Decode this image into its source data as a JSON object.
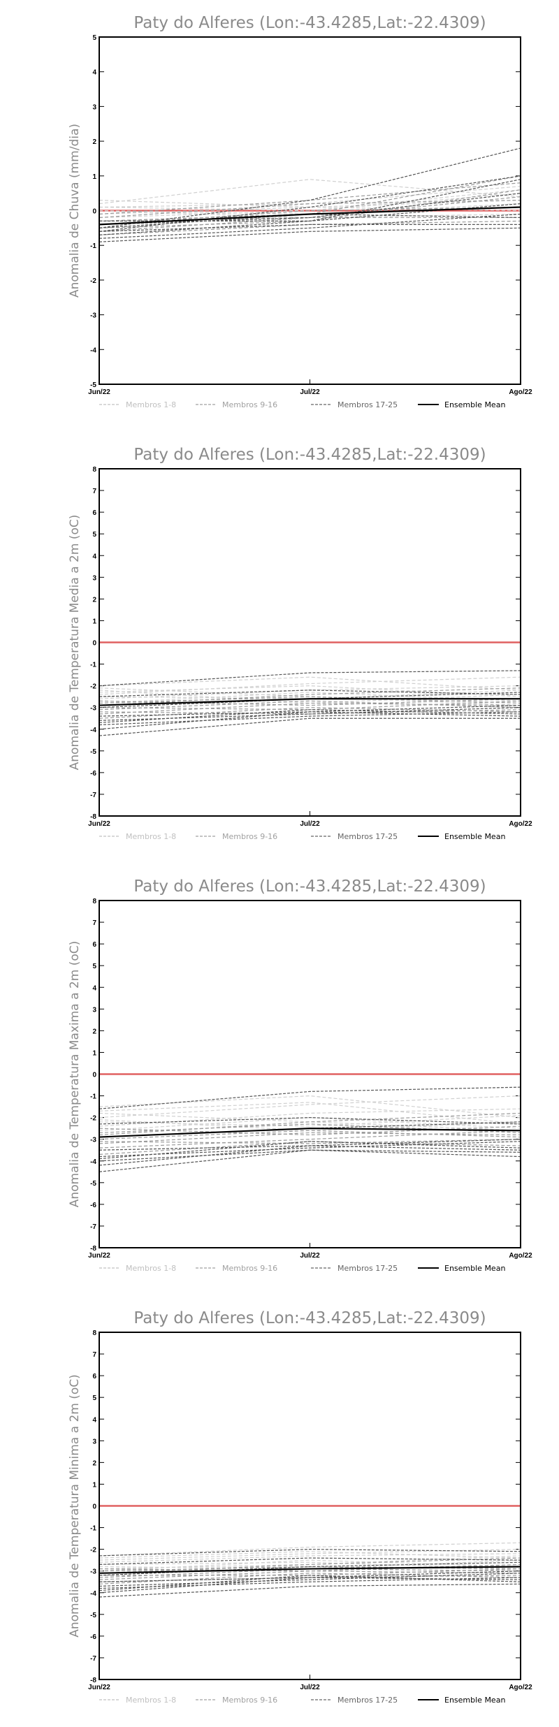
{
  "chart_data": [
    {
      "type": "line",
      "title": "Paty do Alferes (Lon:-43.4285,Lat:-22.4309)",
      "ylabel": "Anomalia de Chuva (mm/dia)",
      "xlabel": "",
      "categories": [
        "Jun/22",
        "Jul/22",
        "Ago/22"
      ],
      "ylim": [
        -5,
        5
      ],
      "yticks": [
        -5,
        -4,
        -3,
        -2,
        -1,
        0,
        1,
        2,
        3,
        4,
        5
      ],
      "grid": false,
      "legend_position": "bottom",
      "legend": [
        "Membros 1-8",
        "Membros 9-16",
        "Membros 17-25",
        "Ensemble Mean"
      ],
      "zero_line_color": "#e06060",
      "series": [
        {
          "group": 1,
          "values": [
            0.2,
            0.9,
            0.4
          ]
        },
        {
          "group": 1,
          "values": [
            0.1,
            0.0,
            0.6
          ]
        },
        {
          "group": 1,
          "values": [
            0.0,
            -0.2,
            -0.1
          ]
        },
        {
          "group": 1,
          "values": [
            0.1,
            0.2,
            0.7
          ]
        },
        {
          "group": 1,
          "values": [
            -0.1,
            0.1,
            0.3
          ]
        },
        {
          "group": 1,
          "values": [
            0.3,
            0.1,
            0.0
          ]
        },
        {
          "group": 1,
          "values": [
            -0.2,
            0.0,
            0.5
          ]
        },
        {
          "group": 1,
          "values": [
            0.0,
            -0.1,
            0.2
          ]
        },
        {
          "group": 2,
          "values": [
            -0.3,
            -0.1,
            1.0
          ]
        },
        {
          "group": 2,
          "values": [
            -0.5,
            -0.3,
            0.6
          ]
        },
        {
          "group": 2,
          "values": [
            -0.2,
            0.2,
            0.3
          ]
        },
        {
          "group": 2,
          "values": [
            -0.6,
            -0.2,
            -0.2
          ]
        },
        {
          "group": 2,
          "values": [
            -0.4,
            0.0,
            0.1
          ]
        },
        {
          "group": 2,
          "values": [
            -0.1,
            0.3,
            0.8
          ]
        },
        {
          "group": 2,
          "values": [
            -0.7,
            -0.4,
            -0.3
          ]
        },
        {
          "group": 2,
          "values": [
            -0.3,
            -0.2,
            0.4
          ]
        },
        {
          "group": 3,
          "values": [
            -0.6,
            -0.4,
            -0.4
          ]
        },
        {
          "group": 3,
          "values": [
            -0.8,
            -0.5,
            -0.1
          ]
        },
        {
          "group": 3,
          "values": [
            -0.5,
            0.3,
            1.8
          ]
        },
        {
          "group": 3,
          "values": [
            -0.7,
            -0.3,
            0.9
          ]
        },
        {
          "group": 3,
          "values": [
            -0.4,
            -0.2,
            0.5
          ]
        },
        {
          "group": 3,
          "values": [
            -0.9,
            -0.6,
            -0.5
          ]
        },
        {
          "group": 3,
          "values": [
            -0.5,
            -0.1,
            -0.2
          ]
        },
        {
          "group": 3,
          "values": [
            -0.3,
            -0.3,
            0.2
          ]
        },
        {
          "group": 3,
          "values": [
            -0.6,
            0.1,
            1.0
          ]
        },
        {
          "group": 0,
          "name": "Ensemble Mean",
          "values": [
            -0.4,
            -0.1,
            0.1
          ]
        }
      ]
    },
    {
      "type": "line",
      "title": "Paty do Alferes (Lon:-43.4285,Lat:-22.4309)",
      "ylabel": "Anomalia de Temperatura Media a 2m (oC)",
      "xlabel": "",
      "categories": [
        "Jun/22",
        "Jul/22",
        "Ago/22"
      ],
      "ylim": [
        -8,
        8
      ],
      "yticks": [
        -8,
        -7,
        -6,
        -5,
        -4,
        -3,
        -2,
        -1,
        0,
        1,
        2,
        3,
        4,
        5,
        6,
        7,
        8
      ],
      "grid": false,
      "legend_position": "bottom",
      "legend": [
        "Membros 1-8",
        "Membros 9-16",
        "Membros 17-25",
        "Ensemble Mean"
      ],
      "zero_line_color": "#e06060",
      "series": [
        {
          "group": 1,
          "values": [
            -2.0,
            -1.6,
            -2.2
          ]
        },
        {
          "group": 1,
          "values": [
            -2.4,
            -1.9,
            -1.6
          ]
        },
        {
          "group": 1,
          "values": [
            -2.1,
            -2.5,
            -2.9
          ]
        },
        {
          "group": 1,
          "values": [
            -2.6,
            -2.2,
            -2.0
          ]
        },
        {
          "group": 1,
          "values": [
            -2.2,
            -2.8,
            -2.4
          ]
        },
        {
          "group": 1,
          "values": [
            -2.8,
            -2.3,
            -2.7
          ]
        },
        {
          "group": 1,
          "values": [
            -2.3,
            -2.0,
            -2.5
          ]
        },
        {
          "group": 1,
          "values": [
            -2.5,
            -2.6,
            -2.2
          ]
        },
        {
          "group": 2,
          "values": [
            -2.9,
            -2.4,
            -2.1
          ]
        },
        {
          "group": 2,
          "values": [
            -3.1,
            -2.7,
            -3.0
          ]
        },
        {
          "group": 2,
          "values": [
            -2.7,
            -2.9,
            -2.6
          ]
        },
        {
          "group": 2,
          "values": [
            -3.3,
            -2.8,
            -2.9
          ]
        },
        {
          "group": 2,
          "values": [
            -3.0,
            -3.1,
            -2.7
          ]
        },
        {
          "group": 2,
          "values": [
            -3.5,
            -3.0,
            -3.2
          ]
        },
        {
          "group": 2,
          "values": [
            -2.8,
            -2.5,
            -2.8
          ]
        },
        {
          "group": 2,
          "values": [
            -3.2,
            -3.3,
            -3.1
          ]
        },
        {
          "group": 3,
          "values": [
            -3.4,
            -3.2,
            -3.4
          ]
        },
        {
          "group": 3,
          "values": [
            -3.6,
            -3.3,
            -3.0
          ]
        },
        {
          "group": 3,
          "values": [
            -4.3,
            -3.5,
            -3.5
          ]
        },
        {
          "group": 3,
          "values": [
            -2.0,
            -1.4,
            -1.3
          ]
        },
        {
          "group": 3,
          "values": [
            -3.8,
            -3.4,
            -3.2
          ]
        },
        {
          "group": 3,
          "values": [
            -3.0,
            -2.6,
            -2.3
          ]
        },
        {
          "group": 3,
          "values": [
            -3.7,
            -3.1,
            -3.3
          ]
        },
        {
          "group": 3,
          "values": [
            -2.5,
            -2.2,
            -2.4
          ]
        },
        {
          "group": 3,
          "values": [
            -4.0,
            -3.2,
            -2.9
          ]
        },
        {
          "group": 0,
          "name": "Ensemble Mean",
          "values": [
            -2.9,
            -2.6,
            -2.6
          ]
        }
      ]
    },
    {
      "type": "line",
      "title": "Paty do Alferes (Lon:-43.4285,Lat:-22.4309)",
      "ylabel": "Anomalia de Temperatura Maxima a 2m (oC)",
      "xlabel": "",
      "categories": [
        "Jun/22",
        "Jul/22",
        "Ago/22"
      ],
      "ylim": [
        -8,
        8
      ],
      "yticks": [
        -8,
        -7,
        -6,
        -5,
        -4,
        -3,
        -2,
        -1,
        0,
        1,
        2,
        3,
        4,
        5,
        6,
        7,
        8
      ],
      "grid": false,
      "legend_position": "bottom",
      "legend": [
        "Membros 1-8",
        "Membros 9-16",
        "Membros 17-25",
        "Ensemble Mean"
      ],
      "zero_line_color": "#e06060",
      "series": [
        {
          "group": 1,
          "values": [
            -1.5,
            -1.0,
            -2.0
          ]
        },
        {
          "group": 1,
          "values": [
            -2.0,
            -1.4,
            -1.0
          ]
        },
        {
          "group": 1,
          "values": [
            -1.8,
            -2.2,
            -2.6
          ]
        },
        {
          "group": 1,
          "values": [
            -2.4,
            -1.8,
            -1.6
          ]
        },
        {
          "group": 1,
          "values": [
            -2.1,
            -2.6,
            -2.2
          ]
        },
        {
          "group": 1,
          "values": [
            -2.6,
            -2.0,
            -2.5
          ]
        },
        {
          "group": 1,
          "values": [
            -1.7,
            -1.3,
            -2.3
          ]
        },
        {
          "group": 1,
          "values": [
            -2.2,
            -2.4,
            -1.9
          ]
        },
        {
          "group": 2,
          "values": [
            -2.8,
            -2.2,
            -1.8
          ]
        },
        {
          "group": 2,
          "values": [
            -3.0,
            -2.6,
            -2.9
          ]
        },
        {
          "group": 2,
          "values": [
            -2.5,
            -2.8,
            -2.4
          ]
        },
        {
          "group": 2,
          "values": [
            -3.2,
            -2.7,
            -2.8
          ]
        },
        {
          "group": 2,
          "values": [
            -3.4,
            -3.0,
            -2.6
          ]
        },
        {
          "group": 2,
          "values": [
            -3.7,
            -3.1,
            -3.3
          ]
        },
        {
          "group": 2,
          "values": [
            -2.7,
            -2.3,
            -2.7
          ]
        },
        {
          "group": 2,
          "values": [
            -3.1,
            -3.2,
            -3.0
          ]
        },
        {
          "group": 3,
          "values": [
            -3.5,
            -3.3,
            -3.5
          ]
        },
        {
          "group": 3,
          "values": [
            -3.8,
            -3.4,
            -3.1
          ]
        },
        {
          "group": 3,
          "values": [
            -4.5,
            -3.5,
            -3.6
          ]
        },
        {
          "group": 3,
          "values": [
            -1.6,
            -0.8,
            -0.6
          ]
        },
        {
          "group": 3,
          "values": [
            -4.0,
            -3.5,
            -3.8
          ]
        },
        {
          "group": 3,
          "values": [
            -2.9,
            -2.5,
            -2.2
          ]
        },
        {
          "group": 3,
          "values": [
            -3.9,
            -3.1,
            -3.4
          ]
        },
        {
          "group": 3,
          "values": [
            -2.3,
            -2.0,
            -2.3
          ]
        },
        {
          "group": 3,
          "values": [
            -4.2,
            -3.3,
            -3.0
          ]
        },
        {
          "group": 0,
          "name": "Ensemble Mean",
          "values": [
            -2.9,
            -2.5,
            -2.6
          ]
        }
      ]
    },
    {
      "type": "line",
      "title": "Paty do Alferes (Lon:-43.4285,Lat:-22.4309)",
      "ylabel": "Anomalia de Temperatura Minima a 2m (oC)",
      "xlabel": "",
      "categories": [
        "Jun/22",
        "Jul/22",
        "Ago/22"
      ],
      "ylim": [
        -8,
        8
      ],
      "yticks": [
        -8,
        -7,
        -6,
        -5,
        -4,
        -3,
        -2,
        -1,
        0,
        1,
        2,
        3,
        4,
        5,
        6,
        7,
        8
      ],
      "grid": false,
      "legend_position": "bottom",
      "legend": [
        "Membros 1-8",
        "Membros 9-16",
        "Membros 17-25",
        "Ensemble Mean"
      ],
      "zero_line_color": "#e06060",
      "series": [
        {
          "group": 1,
          "values": [
            -2.3,
            -1.9,
            -1.7
          ]
        },
        {
          "group": 1,
          "values": [
            -2.5,
            -2.2,
            -2.0
          ]
        },
        {
          "group": 1,
          "values": [
            -2.7,
            -2.6,
            -2.9
          ]
        },
        {
          "group": 1,
          "values": [
            -2.6,
            -2.3,
            -2.2
          ]
        },
        {
          "group": 1,
          "values": [
            -2.8,
            -2.9,
            -2.5
          ]
        },
        {
          "group": 1,
          "values": [
            -3.0,
            -2.5,
            -2.8
          ]
        },
        {
          "group": 1,
          "values": [
            -2.4,
            -2.1,
            -2.4
          ]
        },
        {
          "group": 1,
          "values": [
            -2.9,
            -2.7,
            -2.3
          ]
        },
        {
          "group": 2,
          "values": [
            -3.1,
            -2.7,
            -2.4
          ]
        },
        {
          "group": 2,
          "values": [
            -3.3,
            -2.9,
            -3.0
          ]
        },
        {
          "group": 2,
          "values": [
            -2.9,
            -3.0,
            -2.7
          ]
        },
        {
          "group": 2,
          "values": [
            -3.4,
            -3.0,
            -3.1
          ]
        },
        {
          "group": 2,
          "values": [
            -3.2,
            -3.2,
            -2.9
          ]
        },
        {
          "group": 2,
          "values": [
            -3.6,
            -3.1,
            -3.3
          ]
        },
        {
          "group": 2,
          "values": [
            -3.0,
            -2.8,
            -2.9
          ]
        },
        {
          "group": 2,
          "values": [
            -3.5,
            -3.3,
            -3.2
          ]
        },
        {
          "group": 3,
          "values": [
            -3.5,
            -3.3,
            -3.4
          ]
        },
        {
          "group": 3,
          "values": [
            -3.7,
            -3.4,
            -3.1
          ]
        },
        {
          "group": 3,
          "values": [
            -4.2,
            -3.7,
            -3.6
          ]
        },
        {
          "group": 3,
          "values": [
            -2.3,
            -2.0,
            -2.1
          ]
        },
        {
          "group": 3,
          "values": [
            -3.8,
            -3.5,
            -3.3
          ]
        },
        {
          "group": 3,
          "values": [
            -3.2,
            -2.8,
            -2.6
          ]
        },
        {
          "group": 3,
          "values": [
            -3.9,
            -3.2,
            -3.5
          ]
        },
        {
          "group": 3,
          "values": [
            -2.7,
            -2.4,
            -2.5
          ]
        },
        {
          "group": 3,
          "values": [
            -4.0,
            -3.3,
            -3.0
          ]
        },
        {
          "group": 0,
          "name": "Ensemble Mean",
          "values": [
            -3.1,
            -2.9,
            -2.8
          ]
        }
      ]
    }
  ]
}
